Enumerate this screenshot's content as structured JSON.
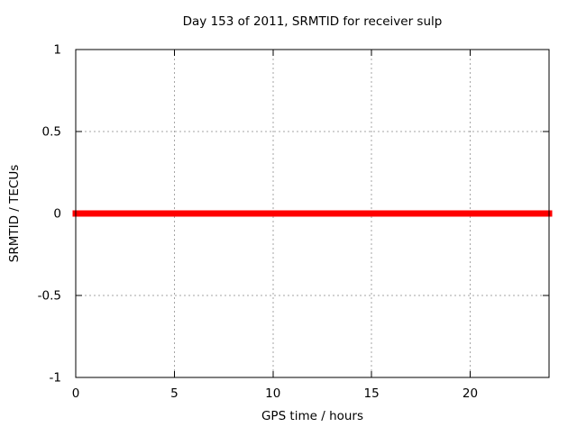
{
  "chart_data": {
    "type": "line",
    "title": "Day 153 of 2011, SRMTID for receiver sulp",
    "xlabel": "GPS time / hours",
    "ylabel": "SRMTID / TECUs",
    "xlim": [
      0,
      24
    ],
    "ylim": [
      -1,
      1
    ],
    "xticks": [
      0,
      5,
      10,
      15,
      20
    ],
    "xtick_labels": [
      "0",
      "5",
      "10",
      "15",
      "20"
    ],
    "yticks": [
      -1,
      -0.5,
      0,
      0.5,
      1
    ],
    "ytick_labels": [
      "-1",
      "-0.5",
      "0",
      "0.5",
      "1"
    ],
    "grid": true,
    "grid_style": "dashed",
    "legend": "none",
    "background_color": "#ffffff",
    "frame_color": "#000000",
    "grid_color": "#a6a6a6",
    "text_color": "#000000",
    "series": [
      {
        "name": "SRMTID",
        "color": "#ff0000",
        "line_width": 7,
        "x": [
          0,
          24
        ],
        "y": [
          0,
          0
        ]
      }
    ]
  }
}
